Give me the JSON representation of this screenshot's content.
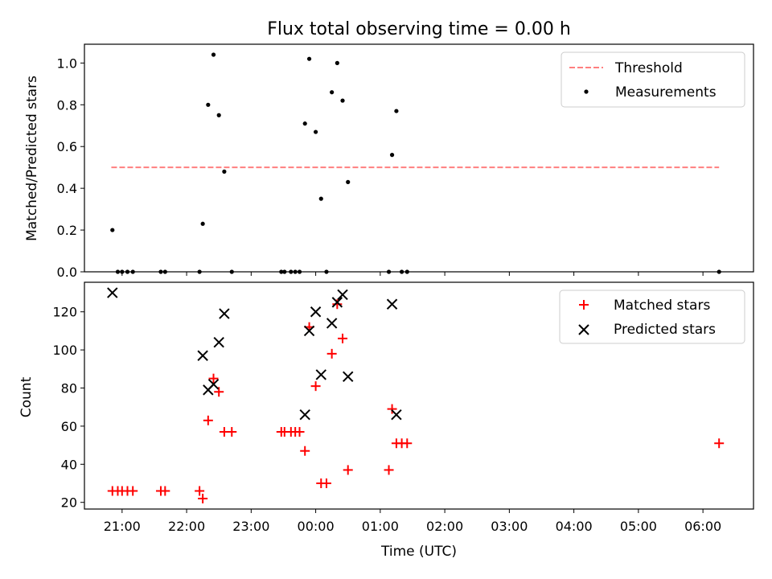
{
  "chart_data": [
    {
      "type": "scatter",
      "title": "Flux total observing time = 0.00 h",
      "xlabel": "",
      "ylabel": "Matched/Predicted stars",
      "xlim": [
        "20:25",
        "06:47"
      ],
      "ylim": [
        0,
        1.09
      ],
      "yticks": [
        "0.0",
        "0.2",
        "0.4",
        "0.6",
        "0.8",
        "1.0"
      ],
      "grid": false,
      "legend_position": "top-right",
      "threshold": {
        "name": "Threshold",
        "value": 0.5,
        "x_start": "20:50",
        "x_end": "06:15",
        "color": "#ff7f7f"
      },
      "series": [
        {
          "name": "Measurements",
          "color": "#000000",
          "points": [
            {
              "x": "20:51",
              "y": 0.2
            },
            {
              "x": "20:56",
              "y": 0.0
            },
            {
              "x": "21:00",
              "y": 0.0
            },
            {
              "x": "21:05",
              "y": 0.0
            },
            {
              "x": "21:10",
              "y": 0.0
            },
            {
              "x": "21:36",
              "y": 0.0
            },
            {
              "x": "21:40",
              "y": 0.0
            },
            {
              "x": "22:12",
              "y": 0.0
            },
            {
              "x": "22:15",
              "y": 0.23
            },
            {
              "x": "22:20",
              "y": 0.8
            },
            {
              "x": "22:25",
              "y": 1.04
            },
            {
              "x": "22:30",
              "y": 0.75
            },
            {
              "x": "22:35",
              "y": 0.48
            },
            {
              "x": "22:42",
              "y": 0.0
            },
            {
              "x": "23:28",
              "y": 0.0
            },
            {
              "x": "23:31",
              "y": 0.0
            },
            {
              "x": "23:37",
              "y": 0.0
            },
            {
              "x": "23:41",
              "y": 0.0
            },
            {
              "x": "23:45",
              "y": 0.0
            },
            {
              "x": "23:50",
              "y": 0.71
            },
            {
              "x": "23:54",
              "y": 1.02
            },
            {
              "x": "00:00",
              "y": 0.67
            },
            {
              "x": "00:05",
              "y": 0.35
            },
            {
              "x": "00:10",
              "y": 0.0
            },
            {
              "x": "00:15",
              "y": 0.86
            },
            {
              "x": "00:20",
              "y": 1.0
            },
            {
              "x": "00:25",
              "y": 0.82
            },
            {
              "x": "00:30",
              "y": 0.43
            },
            {
              "x": "01:08",
              "y": 0.0
            },
            {
              "x": "01:11",
              "y": 0.56
            },
            {
              "x": "01:15",
              "y": 0.77
            },
            {
              "x": "01:20",
              "y": 0.0
            },
            {
              "x": "01:25",
              "y": 0.0
            },
            {
              "x": "06:15",
              "y": 0.0
            }
          ]
        }
      ]
    },
    {
      "type": "scatter",
      "title": "",
      "xlabel": "Time (UTC)",
      "ylabel": "Count",
      "xlim": [
        "20:25",
        "06:47"
      ],
      "ylim": [
        16.5,
        135.5
      ],
      "yticks": [
        "20",
        "40",
        "60",
        "80",
        "100",
        "120"
      ],
      "xticks": [
        "21:00",
        "22:00",
        "23:00",
        "00:00",
        "01:00",
        "02:00",
        "03:00",
        "04:00",
        "05:00",
        "06:00"
      ],
      "grid": false,
      "legend_position": "top-right",
      "series": [
        {
          "name": "Matched stars",
          "marker": "+",
          "color": "#ff0000",
          "points": [
            {
              "x": "20:51",
              "y": 26
            },
            {
              "x": "20:56",
              "y": 26
            },
            {
              "x": "21:00",
              "y": 26
            },
            {
              "x": "21:05",
              "y": 26
            },
            {
              "x": "21:10",
              "y": 26
            },
            {
              "x": "21:36",
              "y": 26
            },
            {
              "x": "21:40",
              "y": 26
            },
            {
              "x": "22:12",
              "y": 26
            },
            {
              "x": "22:15",
              "y": 22
            },
            {
              "x": "22:20",
              "y": 63
            },
            {
              "x": "22:25",
              "y": 85
            },
            {
              "x": "22:30",
              "y": 78
            },
            {
              "x": "22:35",
              "y": 57
            },
            {
              "x": "22:42",
              "y": 57
            },
            {
              "x": "23:28",
              "y": 57
            },
            {
              "x": "23:31",
              "y": 57
            },
            {
              "x": "23:37",
              "y": 57
            },
            {
              "x": "23:41",
              "y": 57
            },
            {
              "x": "23:45",
              "y": 57
            },
            {
              "x": "23:50",
              "y": 47
            },
            {
              "x": "23:54",
              "y": 112
            },
            {
              "x": "00:00",
              "y": 81
            },
            {
              "x": "00:05",
              "y": 30
            },
            {
              "x": "00:10",
              "y": 30
            },
            {
              "x": "00:15",
              "y": 98
            },
            {
              "x": "00:20",
              "y": 124
            },
            {
              "x": "00:25",
              "y": 106
            },
            {
              "x": "00:30",
              "y": 37
            },
            {
              "x": "01:08",
              "y": 37
            },
            {
              "x": "01:11",
              "y": 69
            },
            {
              "x": "01:15",
              "y": 51
            },
            {
              "x": "01:20",
              "y": 51
            },
            {
              "x": "01:25",
              "y": 51
            },
            {
              "x": "06:15",
              "y": 51
            }
          ]
        },
        {
          "name": "Predicted stars",
          "marker": "x",
          "color": "#000000",
          "points": [
            {
              "x": "20:51",
              "y": 130
            },
            {
              "x": "22:15",
              "y": 97
            },
            {
              "x": "22:20",
              "y": 79
            },
            {
              "x": "22:25",
              "y": 82
            },
            {
              "x": "22:30",
              "y": 104
            },
            {
              "x": "22:35",
              "y": 119
            },
            {
              "x": "23:50",
              "y": 66
            },
            {
              "x": "23:54",
              "y": 110
            },
            {
              "x": "00:00",
              "y": 120
            },
            {
              "x": "00:05",
              "y": 87
            },
            {
              "x": "00:15",
              "y": 114
            },
            {
              "x": "00:20",
              "y": 125
            },
            {
              "x": "00:25",
              "y": 129
            },
            {
              "x": "00:30",
              "y": 86
            },
            {
              "x": "01:11",
              "y": 124
            },
            {
              "x": "01:15",
              "y": 66
            }
          ]
        }
      ]
    }
  ]
}
